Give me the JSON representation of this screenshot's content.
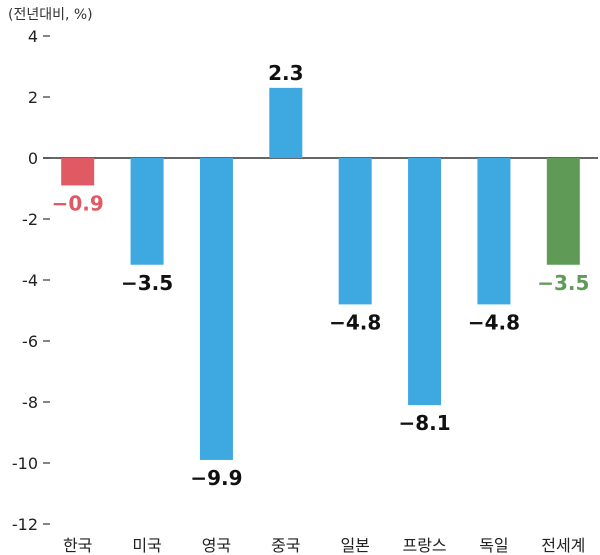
{
  "chart_data": {
    "type": "bar",
    "unit_label": "(전년대비, %)",
    "categories": [
      "한국",
      "미국",
      "영국",
      "중국",
      "일본",
      "프랑스",
      "독일",
      "전세계"
    ],
    "values": [
      -0.9,
      -3.5,
      -9.9,
      2.3,
      -4.8,
      -8.1,
      -4.8,
      -3.5
    ],
    "value_labels": [
      "−0.9",
      "−3.5",
      "−9.9",
      "2.3",
      "−4.8",
      "−8.1",
      "−4.8",
      "−3.5"
    ],
    "bar_colors": [
      "#e05a63",
      "#3ea9e1",
      "#3ea9e1",
      "#3ea9e1",
      "#3ea9e1",
      "#3ea9e1",
      "#3ea9e1",
      "#5f9b57"
    ],
    "label_colors": [
      "#e05a63",
      "#111111",
      "#111111",
      "#111111",
      "#111111",
      "#111111",
      "#111111",
      "#5f9b57"
    ],
    "yticks": [
      4,
      2,
      0,
      -2,
      -4,
      -6,
      -8,
      -10,
      -12
    ],
    "ytick_labels": [
      "4",
      "2",
      "0",
      "-2",
      "-4",
      "-6",
      "-8",
      "-10",
      "-12"
    ],
    "ylim": [
      -12,
      4
    ],
    "title": "",
    "xlabel": "",
    "ylabel": "",
    "grid": false,
    "legend": "none"
  }
}
